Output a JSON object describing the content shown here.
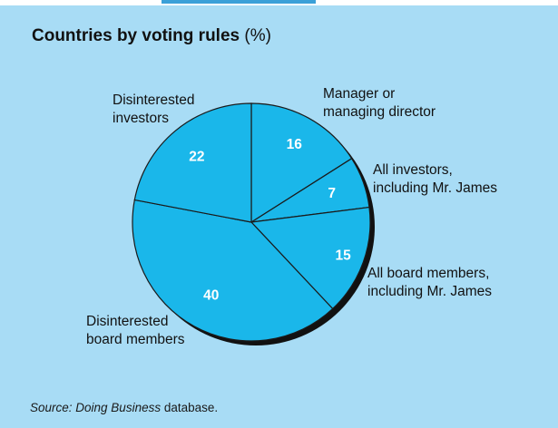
{
  "header": {
    "title_bold": "Countries by voting rules",
    "title_unit": "(%)"
  },
  "source": {
    "prefix": "Source: ",
    "italic": "Doing Business",
    "suffix": " database."
  },
  "colors": {
    "background": "#a8dcf5",
    "slice_fill": "#1ab7ea",
    "slice_stroke": "#1a1a1a",
    "value_text": "#ffffff"
  },
  "chart_data": {
    "type": "pie",
    "title": "Countries by voting rules (%)",
    "slices": [
      {
        "label": [
          "Manager or",
          "managing director"
        ],
        "value": 16
      },
      {
        "label": [
          "All investors,",
          "including Mr. James"
        ],
        "value": 7
      },
      {
        "label": [
          "All board members,",
          "including Mr. James"
        ],
        "value": 15
      },
      {
        "label": [
          "Disinterested",
          "board members"
        ],
        "value": 40
      },
      {
        "label": [
          "Disinterested",
          "investors"
        ],
        "value": 22
      }
    ]
  }
}
